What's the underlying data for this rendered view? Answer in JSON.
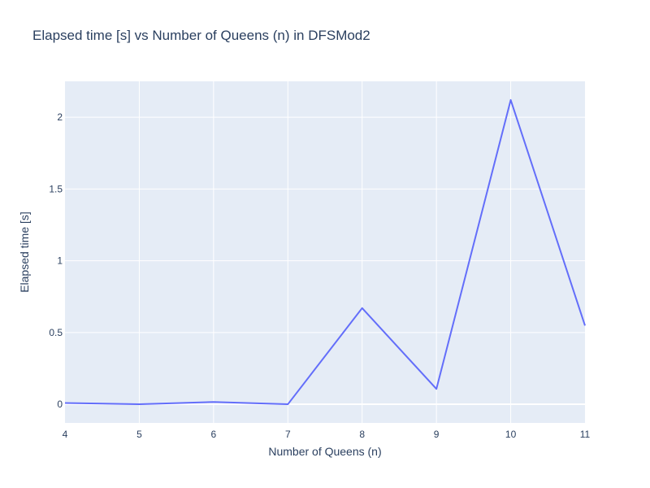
{
  "chart_data": {
    "type": "line",
    "title": "Elapsed time [s] vs Number of Queens (n) in DFSMod2",
    "xlabel": "Number of Queens (n)",
    "ylabel": "Elapsed time [s]",
    "x": [
      4,
      5,
      6,
      7,
      8,
      9,
      10,
      11
    ],
    "series": [
      {
        "values": [
          0.009,
          0.0,
          0.016,
          0.0,
          0.67,
          0.107,
          2.12,
          0.548
        ]
      }
    ],
    "xlim": [
      4,
      11
    ],
    "ylim": [
      -0.13,
      2.25
    ],
    "x_ticks": [
      "4",
      "5",
      "6",
      "7",
      "8",
      "9",
      "10",
      "11"
    ],
    "y_ticks": [
      {
        "value": 0,
        "label": "0"
      },
      {
        "value": 0.5,
        "label": "0.5"
      },
      {
        "value": 1,
        "label": "1"
      },
      {
        "value": 1.5,
        "label": "1.5"
      },
      {
        "value": 2,
        "label": "2"
      }
    ],
    "grid": true,
    "colors": {
      "line": "#636efa",
      "plot_bg": "#e5ecf6",
      "grid": "#ffffff",
      "text": "#2a3f5f"
    }
  }
}
